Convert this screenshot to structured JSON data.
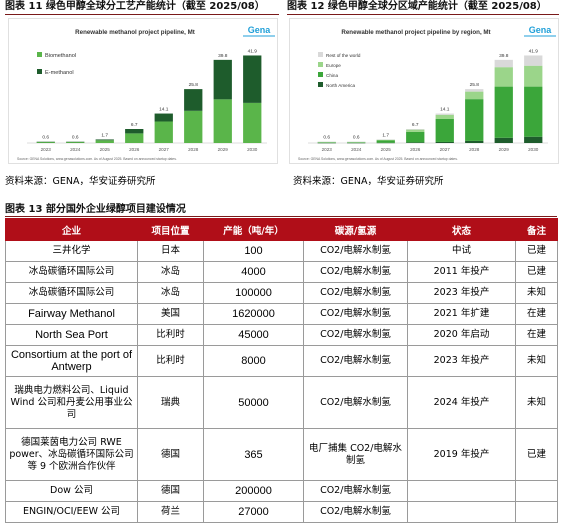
{
  "figure11": {
    "title": "图表 11  绿色甲醇全球分工艺产能统计（截至 2025/08）",
    "logo": "Gena",
    "source_note": "Source: GENA Solutions, www.genasolutions.com. As of August 2025. Based on announced startup dates.",
    "source": "资料来源：GENA，华安证券研究所"
  },
  "figure12": {
    "title": "图表 12  绿色甲醇全球分区域产能统计（截至 2025/08）",
    "logo": "Gena",
    "source_note": "Source: GENA Solutions, www.genasolutions.com. As of August 2025. Based on announced startup dates.",
    "source": "资料来源：GENA，华安证券研究所"
  },
  "chart_data": [
    {
      "type": "bar",
      "stacked": true,
      "title": "Renewable methanol project pipeline, Mt",
      "categories": [
        "2023",
        "2024",
        "2025",
        "2026",
        "2027",
        "2028",
        "2029",
        "2030"
      ],
      "totals": [
        0.6,
        0.6,
        1.7,
        6.7,
        14.1,
        25.8,
        39.8,
        41.9
      ],
      "series": [
        {
          "name": "Biomethanol",
          "color": "#5ab54a",
          "values": [
            0.5,
            0.5,
            1.3,
            4.6,
            10.3,
            15.4,
            20.9,
            19.2
          ]
        },
        {
          "name": "E-methanol",
          "color": "#1e5c2c",
          "values": [
            0.1,
            0.1,
            0.4,
            2.1,
            3.8,
            10.4,
            18.9,
            22.7
          ]
        }
      ],
      "legend": "top-left",
      "ylim": [
        0,
        45
      ]
    },
    {
      "type": "bar",
      "stacked": true,
      "title": "Renewable methanol project pipeline by region, Mt",
      "categories": [
        "2023",
        "2024",
        "2025",
        "2026",
        "2027",
        "2028",
        "2029",
        "2030"
      ],
      "totals": [
        0.6,
        0.6,
        1.7,
        6.7,
        14.1,
        25.8,
        39.8,
        41.9
      ],
      "series": [
        {
          "name": "North America",
          "color": "#1e5c2c",
          "values": [
            0.05,
            0.05,
            0.1,
            0.3,
            0.5,
            1.0,
            2.5,
            3.0
          ]
        },
        {
          "name": "China",
          "color": "#3ba63a",
          "values": [
            0.3,
            0.3,
            1.1,
            5.0,
            11.0,
            20.0,
            24.5,
            24.0
          ]
        },
        {
          "name": "Europe",
          "color": "#9bd58a",
          "values": [
            0.2,
            0.2,
            0.4,
            1.1,
            2.0,
            3.6,
            9.3,
            10.0
          ]
        },
        {
          "name": "Rest of the world",
          "color": "#d9d9d9",
          "values": [
            0.05,
            0.05,
            0.1,
            0.3,
            0.6,
            1.2,
            3.5,
            4.9
          ]
        }
      ],
      "legend": "top-left",
      "ylim": [
        0,
        45
      ]
    }
  ],
  "table": {
    "title": "图表 13  部分国外企业绿醇项目建设情况",
    "headers": [
      "企业",
      "项目位置",
      "产能（吨/年）",
      "碳源/氢源",
      "状态",
      "备注"
    ],
    "rows": [
      [
        "三井化学",
        "日本",
        "100",
        "CO2/电解水制氢",
        "中试",
        "已建"
      ],
      [
        "冰岛碳循环国际公司",
        "冰岛",
        "4000",
        "CO2/电解水制氢",
        "2011 年投产",
        "已建"
      ],
      [
        "冰岛碳循环国际公司",
        "冰岛",
        "100000",
        "CO2/电解水制氢",
        "2023 年投产",
        "未知"
      ],
      [
        "Fairway Methanol",
        "美国",
        "1620000",
        "CO2/电解水制氢",
        "2021 年扩建",
        "在建"
      ],
      [
        "North Sea Port",
        "比利时",
        "45000",
        "CO2/电解水制氢",
        "2020 年启动",
        "在建"
      ],
      [
        "Consortium at the port of Antwerp",
        "比利时",
        "8000",
        "CO2/电解水制氢",
        "2023 年投产",
        "未知"
      ],
      [
        "瑞典电力燃料公司、Liquid Wind 公司和丹麦公用事业公司",
        "瑞典",
        "50000",
        "CO2/电解水制氢",
        "2024 年投产",
        "未知"
      ],
      [
        "德国莱茵电力公司 RWE power、冰岛碳循环国际公司等 9 个欧洲合作伙伴",
        "德国",
        "365",
        "电厂捕集 CO2/电解水制氢",
        "2019 年投产",
        "已建"
      ],
      [
        "Dow 公司",
        "德国",
        "200000",
        "CO2/电解水制氢",
        "",
        ""
      ],
      [
        "ENGIN/OCI/EEW 公司",
        "荷兰",
        "27000",
        "CO2/电解水制氢",
        "",
        ""
      ]
    ]
  }
}
